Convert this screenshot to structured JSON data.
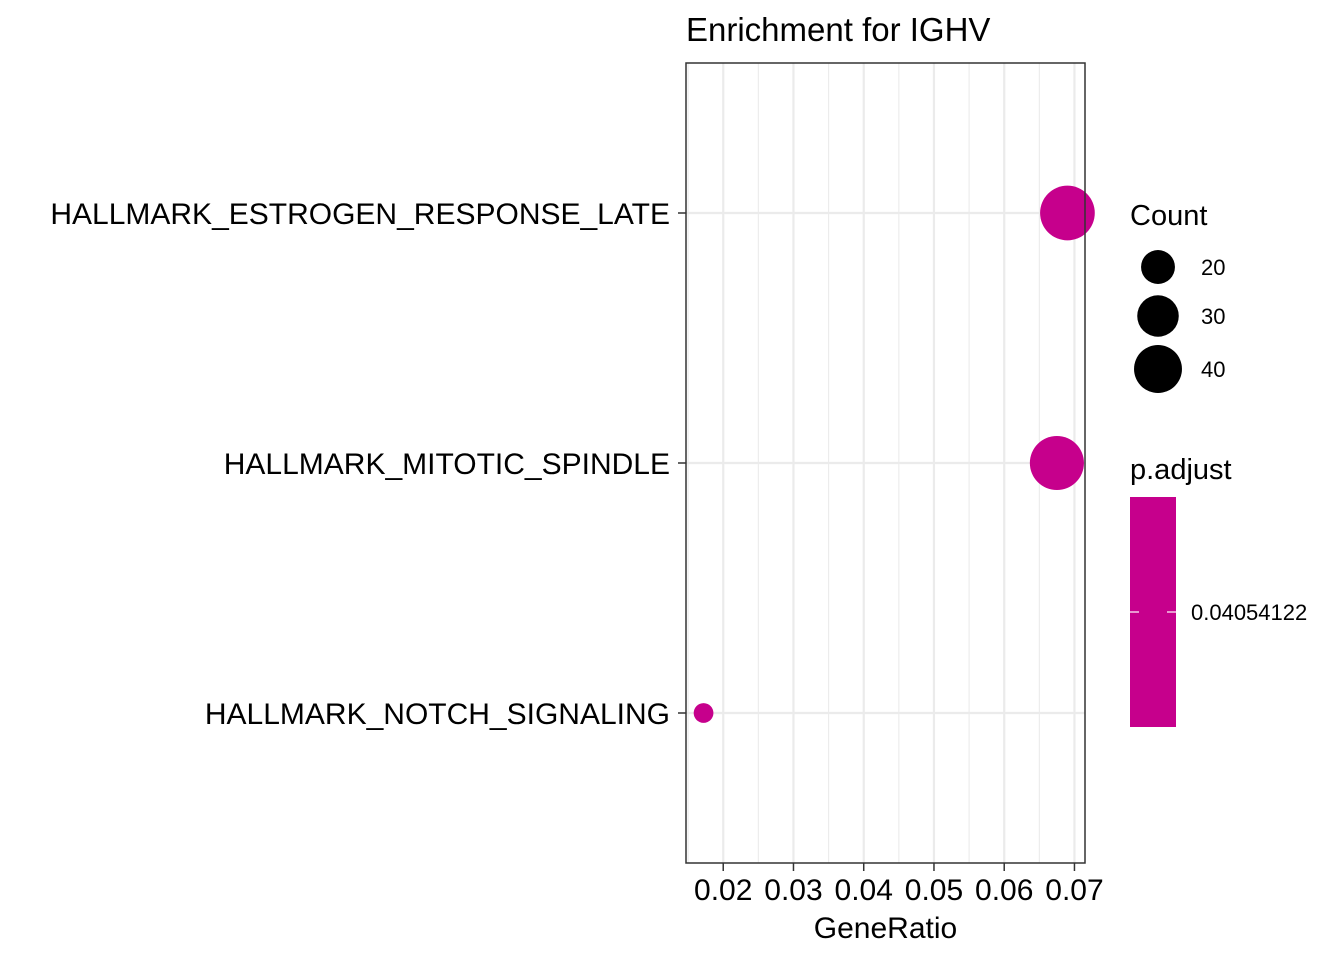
{
  "chart_data": {
    "type": "scatter",
    "title": "Enrichment for IGHV",
    "xlabel": "GeneRatio",
    "ylabel": "",
    "xlim": [
      0.0147,
      0.0715
    ],
    "x_ticks": [
      0.02,
      0.03,
      0.04,
      0.05,
      0.06,
      0.07
    ],
    "x_tick_labels": [
      "0.02",
      "0.03",
      "0.04",
      "0.05",
      "0.06",
      "0.07"
    ],
    "categories": [
      "HALLMARK_ESTROGEN_RESPONSE_LATE",
      "HALLMARK_MITOTIC_SPINDLE",
      "HALLMARK_NOTCH_SIGNALING"
    ],
    "points": [
      {
        "category": "HALLMARK_ESTROGEN_RESPONSE_LATE",
        "x": 0.069,
        "count": 46,
        "p_adjust": 0.04054122
      },
      {
        "category": "HALLMARK_MITOTIC_SPINDLE",
        "x": 0.0675,
        "count": 45,
        "p_adjust": 0.04054122
      },
      {
        "category": "HALLMARK_NOTCH_SIGNALING",
        "x": 0.0172,
        "count": 6,
        "p_adjust": 0.04054122
      }
    ],
    "grid": true,
    "point_color": "#C6008C",
    "legend": {
      "placement": "right",
      "size": {
        "title": "Count",
        "entries": [
          {
            "label": "20",
            "value": 20
          },
          {
            "label": "30",
            "value": 30
          },
          {
            "label": "40",
            "value": 40
          }
        ]
      },
      "color": {
        "title": "p.adjust",
        "tick_label": "0.04054122",
        "color": "#C6008C"
      }
    }
  }
}
